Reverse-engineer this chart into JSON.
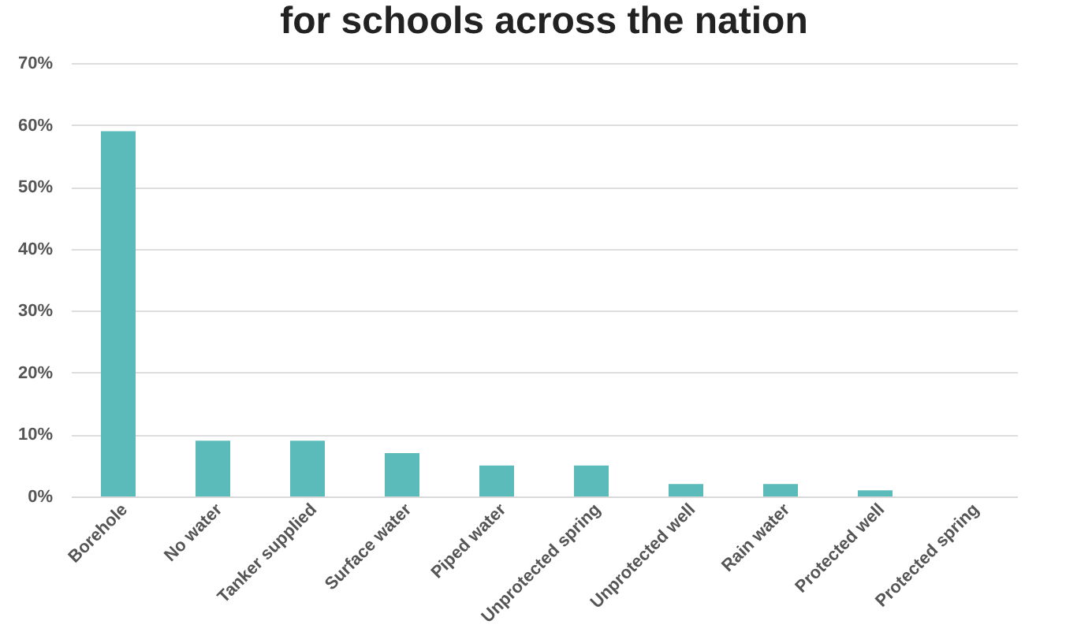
{
  "chart_data": {
    "type": "bar",
    "title": "for schools across the nation",
    "categories": [
      "Borehole",
      "No water",
      "Tanker supplied",
      "Surface water",
      "Piped water",
      "Unprotected spring",
      "Unprotected well",
      "Rain water",
      "Protected well",
      "Protected spring"
    ],
    "values": [
      59,
      9,
      9,
      7,
      5,
      5,
      2,
      2,
      1,
      0
    ],
    "color": "#5bbbbb",
    "ylim": [
      0,
      70
    ],
    "yticks": [
      {
        "value": 0,
        "label": "0%"
      },
      {
        "value": 10,
        "label": "10%"
      },
      {
        "value": 20,
        "label": "20%"
      },
      {
        "value": 30,
        "label": "30%"
      },
      {
        "value": 40,
        "label": "40%"
      },
      {
        "value": 50,
        "label": "50%"
      },
      {
        "value": 60,
        "label": "60%"
      },
      {
        "value": 70,
        "label": "70%"
      }
    ],
    "grid": "y"
  }
}
